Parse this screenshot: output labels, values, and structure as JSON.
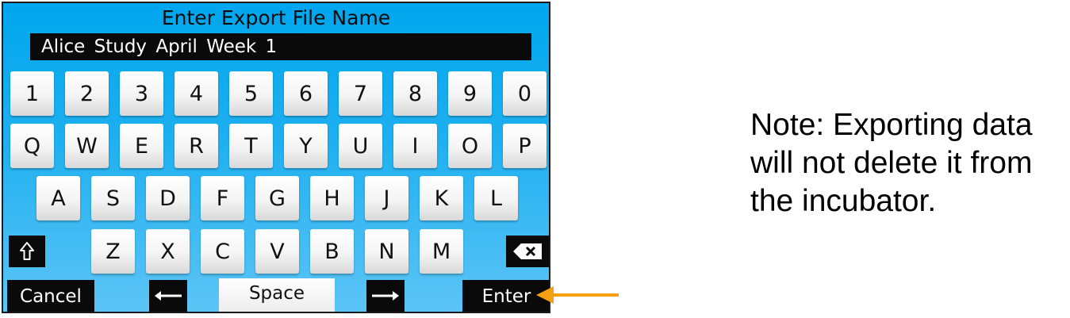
{
  "dialog": {
    "title": "Enter Export File Name",
    "file_name_value": "Alice Study April Week 1"
  },
  "keyboard": {
    "row1": [
      "1",
      "2",
      "3",
      "4",
      "5",
      "6",
      "7",
      "8",
      "9",
      "0"
    ],
    "row2": [
      "Q",
      "W",
      "E",
      "R",
      "T",
      "Y",
      "U",
      "I",
      "O",
      "P"
    ],
    "row3": [
      "A",
      "S",
      "D",
      "F",
      "G",
      "H",
      "J",
      "K",
      "L"
    ],
    "row4": [
      "Z",
      "X",
      "C",
      "V",
      "B",
      "N",
      "M"
    ],
    "shift_icon": "shift-arrow-up-icon",
    "backspace_icon": "backspace-x-icon"
  },
  "bottom_bar": {
    "cancel_label": "Cancel",
    "space_label": "Space",
    "enter_label": "Enter",
    "left_arrow_icon": "arrow-left-icon",
    "right_arrow_icon": "arrow-right-icon"
  },
  "note": {
    "text": "Note: Exporting data will not delete it from the incubator."
  },
  "annotation": {
    "arrow_icon": "pointer-arrow-left-icon",
    "arrow_color": "#f5a00f"
  },
  "colors": {
    "screen_top": "#00a6ee",
    "screen_bottom": "#5cc4f6",
    "dark": "#0a0a0a"
  }
}
